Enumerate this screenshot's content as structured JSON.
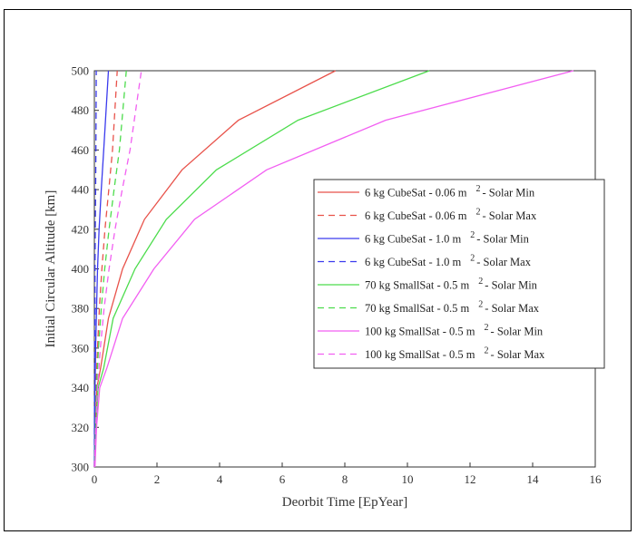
{
  "chart_data": {
    "type": "line",
    "xlabel": "Deorbit Time [EpYear]",
    "ylabel": "Initial Circular Altitude [km]",
    "xlim": [
      0,
      16
    ],
    "ylim": [
      300,
      500
    ],
    "xticks": [
      0,
      2,
      4,
      6,
      8,
      10,
      12,
      14,
      16
    ],
    "yticks": [
      300,
      320,
      340,
      360,
      380,
      400,
      420,
      440,
      460,
      480,
      500
    ],
    "grid": false,
    "legend_position": "center-right",
    "series": [
      {
        "name": "6 kg CubeSat - 0.06 m",
        "sup": "2",
        "suffix": " - Solar Min",
        "color": "#e8524a",
        "dash": "solid",
        "x": [
          0.01,
          0.03,
          0.08,
          0.2,
          0.45,
          0.9,
          1.6,
          2.8,
          4.6,
          7.7
        ],
        "y": [
          300,
          320,
          340,
          350,
          375,
          400,
          425,
          450,
          475,
          500
        ]
      },
      {
        "name": "6 kg CubeSat - 0.06 m",
        "sup": "2",
        "suffix": " - Solar Max",
        "color": "#e8524a",
        "dash": "dashed",
        "x": [
          0.0,
          0.02,
          0.05,
          0.1,
          0.16,
          0.24,
          0.34,
          0.46,
          0.58,
          0.73
        ],
        "y": [
          300,
          320,
          340,
          360,
          380,
          400,
          420,
          440,
          460,
          500
        ]
      },
      {
        "name": "6 kg CubeSat - 1.0 m",
        "sup": "2",
        "suffix": " - Solar Min",
        "color": "#3a3aed",
        "dash": "solid",
        "x": [
          0.0,
          0.01,
          0.02,
          0.04,
          0.07,
          0.1,
          0.15,
          0.22,
          0.3,
          0.45
        ],
        "y": [
          300,
          320,
          340,
          360,
          380,
          400,
          420,
          440,
          460,
          500
        ]
      },
      {
        "name": "6 kg CubeSat - 1.0 m",
        "sup": "2",
        "suffix": " - Solar Max",
        "color": "#3a3aed",
        "dash": "dashed",
        "x": [
          0.0,
          0.0,
          0.01,
          0.01,
          0.02,
          0.02,
          0.03,
          0.04,
          0.05,
          0.06
        ],
        "y": [
          300,
          320,
          340,
          360,
          380,
          400,
          420,
          440,
          460,
          500
        ]
      },
      {
        "name": "70 kg SmallSat - 0.5 m",
        "sup": "2",
        "suffix": " - Solar Min",
        "color": "#4cdc4c",
        "dash": "solid",
        "x": [
          0.01,
          0.05,
          0.12,
          0.3,
          0.6,
          1.3,
          2.3,
          3.9,
          6.5,
          10.7
        ],
        "y": [
          300,
          320,
          340,
          350,
          375,
          400,
          425,
          450,
          475,
          500
        ]
      },
      {
        "name": "70 kg SmallSat - 0.5 m",
        "sup": "2",
        "suffix": " - Solar Max",
        "color": "#4cdc4c",
        "dash": "dashed",
        "x": [
          0.0,
          0.03,
          0.07,
          0.13,
          0.22,
          0.33,
          0.47,
          0.63,
          0.8,
          1.02
        ],
        "y": [
          300,
          320,
          340,
          360,
          380,
          400,
          420,
          440,
          460,
          500
        ]
      },
      {
        "name": "100 kg SmallSat - 0.5 m",
        "sup": "2",
        "suffix": " - Solar Min",
        "color": "#f25ff2",
        "dash": "solid",
        "x": [
          0.02,
          0.07,
          0.17,
          0.4,
          0.9,
          1.9,
          3.2,
          5.5,
          9.3,
          15.3
        ],
        "y": [
          300,
          320,
          340,
          350,
          375,
          400,
          425,
          450,
          475,
          500
        ]
      },
      {
        "name": "100 kg SmallSat - 0.5 m",
        "sup": "2",
        "suffix": " - Solar Max",
        "color": "#f25ff2",
        "dash": "dashed",
        "x": [
          0.0,
          0.04,
          0.1,
          0.19,
          0.31,
          0.47,
          0.66,
          0.89,
          1.14,
          1.5
        ],
        "y": [
          300,
          320,
          340,
          360,
          380,
          400,
          420,
          440,
          460,
          500
        ]
      }
    ]
  }
}
